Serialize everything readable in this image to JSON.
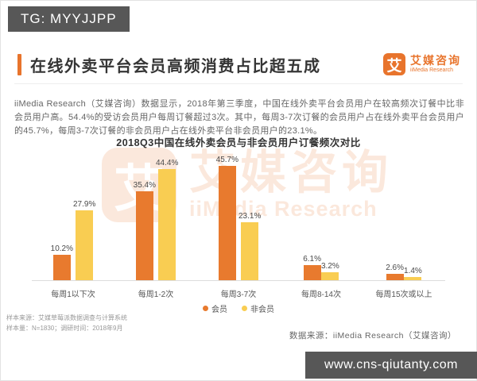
{
  "badge": {
    "text": "TG: MYYJJPP"
  },
  "header": {
    "title": "在线外卖平台会员高频消费占比超五成",
    "logo": {
      "glyph": "艾",
      "name_cn": "艾媒咨询",
      "name_en": "iiMedia Research"
    }
  },
  "intro": "iiMedia Research（艾媒咨询）数据显示，2018年第三季度，中国在线外卖平台会员用户在较高频次订餐中比非会员用户高。54.4%的受访会员用户每周订餐超过3次。其中，每周3-7次订餐的会员用户占在线外卖平台会员用户的45.7%，每周3-7次订餐的非会员用户占在线外卖平台非会员用户的23.1%。",
  "chart_data": {
    "type": "bar",
    "title": "2018Q3中国在线外卖会员与非会员用户订餐频次对比",
    "categories": [
      "每周1以下次",
      "每周1-2次",
      "每周3-7次",
      "每周8-14次",
      "每周15次或以上"
    ],
    "series": [
      {
        "key": "member",
        "name": "会员",
        "color": "#e87a2e",
        "values": [
          10.2,
          35.4,
          45.7,
          6.1,
          2.6
        ]
      },
      {
        "key": "non-member",
        "name": "非会员",
        "color": "#f9cd52",
        "values": [
          27.9,
          44.4,
          23.1,
          3.2,
          1.4
        ]
      }
    ],
    "value_suffix": "%",
    "ylim": [
      0,
      50
    ],
    "grid": false,
    "legend_position": "bottom"
  },
  "watermark": {
    "glyph": "艾",
    "name_cn": "艾媒咨询",
    "name_en": "iiMedia Research"
  },
  "footnotes": [
    "样本来源：艾媒草莓派数据调查与计算系统",
    "样本量：N=1830；调研时间：2018年9月"
  ],
  "data_source": "数据来源：iiMedia Research（艾媒咨询）",
  "website": "www.cns-qiutanty.com",
  "colors": {
    "accent": "#e8742c",
    "badge_bg": "#575757",
    "axis_line": "#dddddd"
  }
}
